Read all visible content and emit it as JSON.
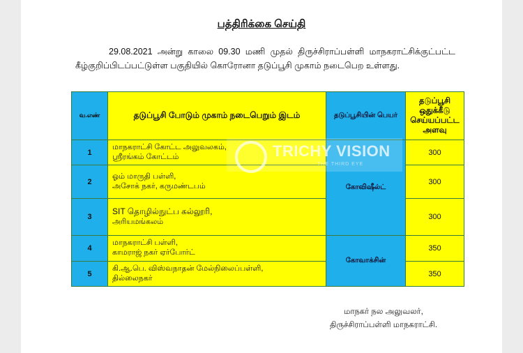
{
  "document": {
    "title": "பத்திரிக்கை செய்தி",
    "paragraph": "29.08.2021 அன்று காலை 09.30 மணி முதல் திருச்சிராப்பள்ளி மாநகராட்சிக்குட்பட்ட கீழ்குறிப்பிடப்பட்டுள்ள பகுதியில் கொரோனா தடுப்பூசி முகாம் நடைபெற உள்ளது."
  },
  "table": {
    "headers": [
      "வ.எண்",
      "தடுப்பூசி போடும் முகாம் நடைபெறும் இடம்",
      "தடுப்பூசியின் பெயர்",
      "தடுப்பூசி ஒதுக்கீடு செய்யப்பட்ட அளவு"
    ],
    "rows": [
      {
        "no": "1",
        "place_line1": "மாநகராட்சி கோட்ட அலுவலகம்,",
        "place_line2": "ஸ்ரீரங்கம் கோட்டம்",
        "quantity": "300"
      },
      {
        "no": "2",
        "place_line1": "ஓம் மாருதி பள்ளி,",
        "place_line2": "அசோக் நகர், கருமண்டபம்",
        "quantity": "300"
      },
      {
        "no": "3",
        "place_line1": "SIT தொழில்நுட்ப கல்லூரி,",
        "place_line2": "அரியமங்கலம்",
        "quantity": "300"
      },
      {
        "no": "4",
        "place_line1": "மாநகராட்சி பள்ளி,",
        "place_line2": "காமராஜ் நகர் ஏர்போர்ட்",
        "quantity": "350"
      },
      {
        "no": "5",
        "place_line1": "கி.ஆ.பெ. விஸ்வநாதன் மேல்நிலைப்பள்ளி,",
        "place_line2": "தில்லைநகர்",
        "quantity": "350"
      }
    ],
    "vaccines": [
      "கோவிஷீல்ட்",
      "கோவாக்சின்"
    ],
    "colors": {
      "blue": "#1fb0ec",
      "yellow": "#ffff00"
    }
  },
  "signature": {
    "line1": "மாநகர் நல அலுவலர்,",
    "line2": "திருச்சிராப்பள்ளி மாநகராட்சி."
  },
  "watermark": {
    "brand": "TRICHY VISION",
    "tagline": "THE THIRD EYE"
  }
}
